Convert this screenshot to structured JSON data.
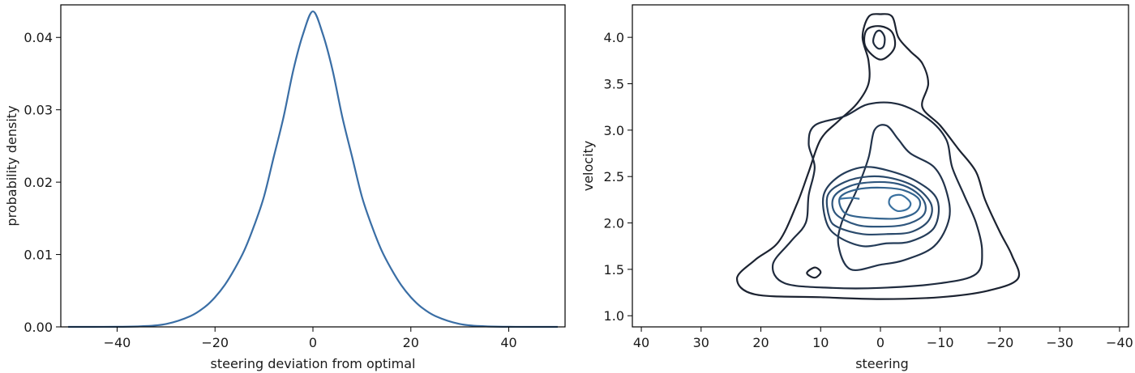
{
  "chart_data": [
    {
      "type": "line",
      "xlabel": "steering deviation from optimal",
      "ylabel": "probability density",
      "xlim": [
        -51.5,
        51.5
      ],
      "ylim": [
        0,
        0.0445
      ],
      "xticks": [
        -40,
        -20,
        0,
        20,
        40
      ],
      "xtick_labels": [
        "−40",
        "−20",
        "0",
        "20",
        "40"
      ],
      "yticks": [
        0,
        0.01,
        0.02,
        0.03,
        0.04
      ],
      "ytick_labels": [
        "0.00",
        "0.01",
        "0.02",
        "0.03",
        "0.04"
      ],
      "series": [
        {
          "color": "#3a6ea5",
          "x": [
            -50,
            -40,
            -35,
            -30,
            -25,
            -22,
            -20,
            -18,
            -16,
            -14,
            -12,
            -10,
            -8,
            -6,
            -4,
            -2,
            0,
            2,
            4,
            6,
            8,
            10,
            12,
            14,
            16,
            18,
            20,
            22,
            25,
            30,
            35,
            40,
            50
          ],
          "y": [
            0.0,
            1e-05,
            8e-05,
            0.0004,
            0.0015,
            0.0028,
            0.0041,
            0.0058,
            0.008,
            0.0106,
            0.014,
            0.018,
            0.0235,
            0.029,
            0.0355,
            0.0405,
            0.0436,
            0.0405,
            0.0355,
            0.029,
            0.0235,
            0.018,
            0.014,
            0.0106,
            0.008,
            0.0058,
            0.0041,
            0.0028,
            0.0015,
            0.0004,
            8e-05,
            1e-05,
            0.0
          ]
        }
      ],
      "grid": false
    },
    {
      "type": "contour",
      "xlabel": "steering",
      "ylabel": "velocity",
      "xlim": [
        41.5,
        -41.5
      ],
      "ylim": [
        0.88,
        4.35
      ],
      "xticks": [
        40,
        30,
        20,
        10,
        0,
        -10,
        -20,
        -30,
        -40
      ],
      "xtick_labels": [
        "40",
        "30",
        "20",
        "10",
        "0",
        "−10",
        "−20",
        "−30",
        "−40"
      ],
      "yticks": [
        1.0,
        1.5,
        2.0,
        2.5,
        3.0,
        3.5,
        4.0
      ],
      "ytick_labels": [
        "1.0",
        "1.5",
        "2.0",
        "2.5",
        "3.0",
        "3.5",
        "4.0"
      ],
      "level_colors": [
        "#1c2331",
        "#1f2b3e",
        "#22334b",
        "#253d5a",
        "#2a4a6c",
        "#2f567d",
        "#33638e",
        "#3a71a0"
      ],
      "contours": [
        {
          "level": 1,
          "color": "#1c2331",
          "points": [
            [
              21,
              1.23
            ],
            [
              24,
              1.4
            ],
            [
              21,
              1.6
            ],
            [
              17,
              1.8
            ],
            [
              14,
              2.2
            ],
            [
              12,
              2.55
            ],
            [
              10,
              2.9
            ],
            [
              7,
              3.1
            ],
            [
              4,
              3.28
            ],
            [
              2,
              3.5
            ],
            [
              2,
              3.75
            ],
            [
              3,
              4.0
            ],
            [
              2,
              4.22
            ],
            [
              0,
              4.25
            ],
            [
              -2,
              4.22
            ],
            [
              -3,
              4.0
            ],
            [
              -5,
              3.85
            ],
            [
              -7,
              3.72
            ],
            [
              -8,
              3.5
            ],
            [
              -7,
              3.25
            ],
            [
              -10,
              3.05
            ],
            [
              -13,
              2.8
            ],
            [
              -16,
              2.55
            ],
            [
              -17.5,
              2.25
            ],
            [
              -20,
              1.9
            ],
            [
              -22,
              1.65
            ],
            [
              -23,
              1.4
            ],
            [
              -18,
              1.27
            ],
            [
              -10,
              1.2
            ],
            [
              0,
              1.18
            ],
            [
              10,
              1.2
            ],
            [
              21,
              1.23
            ]
          ]
        },
        {
          "level": 2,
          "color": "#1f2b3e",
          "points": [
            [
              16,
              1.35
            ],
            [
              18,
              1.55
            ],
            [
              15,
              1.8
            ],
            [
              12.5,
              2.0
            ],
            [
              12,
              2.3
            ],
            [
              11,
              2.6
            ],
            [
              12,
              2.85
            ],
            [
              11,
              3.05
            ],
            [
              6,
              3.15
            ],
            [
              2,
              3.28
            ],
            [
              -3,
              3.28
            ],
            [
              -8,
              3.12
            ],
            [
              -11,
              2.9
            ],
            [
              -12,
              2.6
            ],
            [
              -14,
              2.3
            ],
            [
              -16,
              2.0
            ],
            [
              -17,
              1.7
            ],
            [
              -16,
              1.45
            ],
            [
              -10,
              1.35
            ],
            [
              0,
              1.3
            ],
            [
              8,
              1.3
            ],
            [
              16,
              1.35
            ]
          ]
        },
        {
          "level": 3,
          "color": "#22334b",
          "points": [
            [
              5,
              1.5
            ],
            [
              7,
              1.75
            ],
            [
              6.5,
              2.0
            ],
            [
              4,
              2.35
            ],
            [
              2,
              2.7
            ],
            [
              1,
              3.0
            ],
            [
              -1,
              3.05
            ],
            [
              -3,
              2.9
            ],
            [
              -5,
              2.75
            ],
            [
              -9,
              2.6
            ],
            [
              -11,
              2.35
            ],
            [
              -11.5,
              2.05
            ],
            [
              -9,
              1.75
            ],
            [
              -4,
              1.6
            ],
            [
              0,
              1.55
            ],
            [
              5,
              1.5
            ]
          ]
        },
        {
          "level": 4,
          "color": "#253d5a",
          "points": [
            [
              9,
              2.0
            ],
            [
              9.5,
              2.3
            ],
            [
              7,
              2.5
            ],
            [
              3,
              2.6
            ],
            [
              -1,
              2.57
            ],
            [
              -6,
              2.45
            ],
            [
              -9.5,
              2.25
            ],
            [
              -9,
              1.95
            ],
            [
              -5,
              1.8
            ],
            [
              -1,
              1.78
            ],
            [
              3,
              1.75
            ],
            [
              7,
              1.85
            ],
            [
              9,
              2.0
            ]
          ]
        },
        {
          "level": 5,
          "color": "#2a4a6c",
          "points": [
            [
              8.5,
              2.05
            ],
            [
              8.8,
              2.3
            ],
            [
              6,
              2.44
            ],
            [
              2,
              2.5
            ],
            [
              -2,
              2.48
            ],
            [
              -6,
              2.38
            ],
            [
              -8.5,
              2.2
            ],
            [
              -8,
              2.02
            ],
            [
              -5,
              1.9
            ],
            [
              -1,
              1.88
            ],
            [
              3,
              1.88
            ],
            [
              7,
              1.95
            ],
            [
              8.5,
              2.05
            ]
          ]
        },
        {
          "level": 6,
          "color": "#2f567d",
          "points": [
            [
              7.5,
              2.1
            ],
            [
              7.8,
              2.28
            ],
            [
              5,
              2.4
            ],
            [
              1,
              2.44
            ],
            [
              -3,
              2.42
            ],
            [
              -6,
              2.33
            ],
            [
              -7.5,
              2.2
            ],
            [
              -7,
              2.07
            ],
            [
              -4,
              1.98
            ],
            [
              0,
              1.96
            ],
            [
              4,
              1.98
            ],
            [
              7.5,
              2.1
            ]
          ]
        },
        {
          "level": 7,
          "color": "#33638e",
          "points": [
            [
              6.5,
              2.15
            ],
            [
              6.7,
              2.28
            ],
            [
              4,
              2.36
            ],
            [
              0,
              2.38
            ],
            [
              -4,
              2.35
            ],
            [
              -6.5,
              2.25
            ],
            [
              -6,
              2.12
            ],
            [
              -3,
              2.05
            ],
            [
              1,
              2.05
            ],
            [
              5,
              2.08
            ],
            [
              6.5,
              2.15
            ]
          ]
        },
        {
          "level": 8,
          "color": "#3a71a0",
          "points": [
            [
              -1.5,
              2.2
            ],
            [
              -1.8,
              2.28
            ],
            [
              -3.5,
              2.3
            ],
            [
              -5,
              2.22
            ],
            [
              -4.5,
              2.15
            ],
            [
              -2.8,
              2.13
            ],
            [
              -1.5,
              2.2
            ]
          ]
        },
        {
          "level": 9,
          "color": "#1c2331",
          "points": [
            [
              2.5,
              3.9
            ],
            [
              2.3,
              4.08
            ],
            [
              0,
              4.12
            ],
            [
              -2,
              4.05
            ],
            [
              -2.3,
              3.88
            ],
            [
              0,
              3.76
            ],
            [
              2.5,
              3.9
            ]
          ]
        },
        {
          "level": 10,
          "color": "#1f2b3e",
          "points": [
            [
              1.2,
              3.95
            ],
            [
              0.8,
              4.05
            ],
            [
              0,
              4.07
            ],
            [
              -0.7,
              4.0
            ],
            [
              -0.5,
              3.9
            ],
            [
              0.4,
              3.88
            ],
            [
              1.2,
              3.95
            ]
          ]
        },
        {
          "level": 11,
          "color": "#1c2331",
          "points": [
            [
              12.3,
              1.46
            ],
            [
              11,
              1.52
            ],
            [
              10,
              1.47
            ],
            [
              11,
              1.41
            ],
            [
              12.3,
              1.46
            ]
          ]
        },
        {
          "level": 12,
          "color": "#3a71a0",
          "points": [
            [
              6.8,
              2.26
            ],
            [
              5,
              2.27
            ],
            [
              3.5,
              2.26
            ]
          ]
        }
      ],
      "grid": false
    }
  ]
}
